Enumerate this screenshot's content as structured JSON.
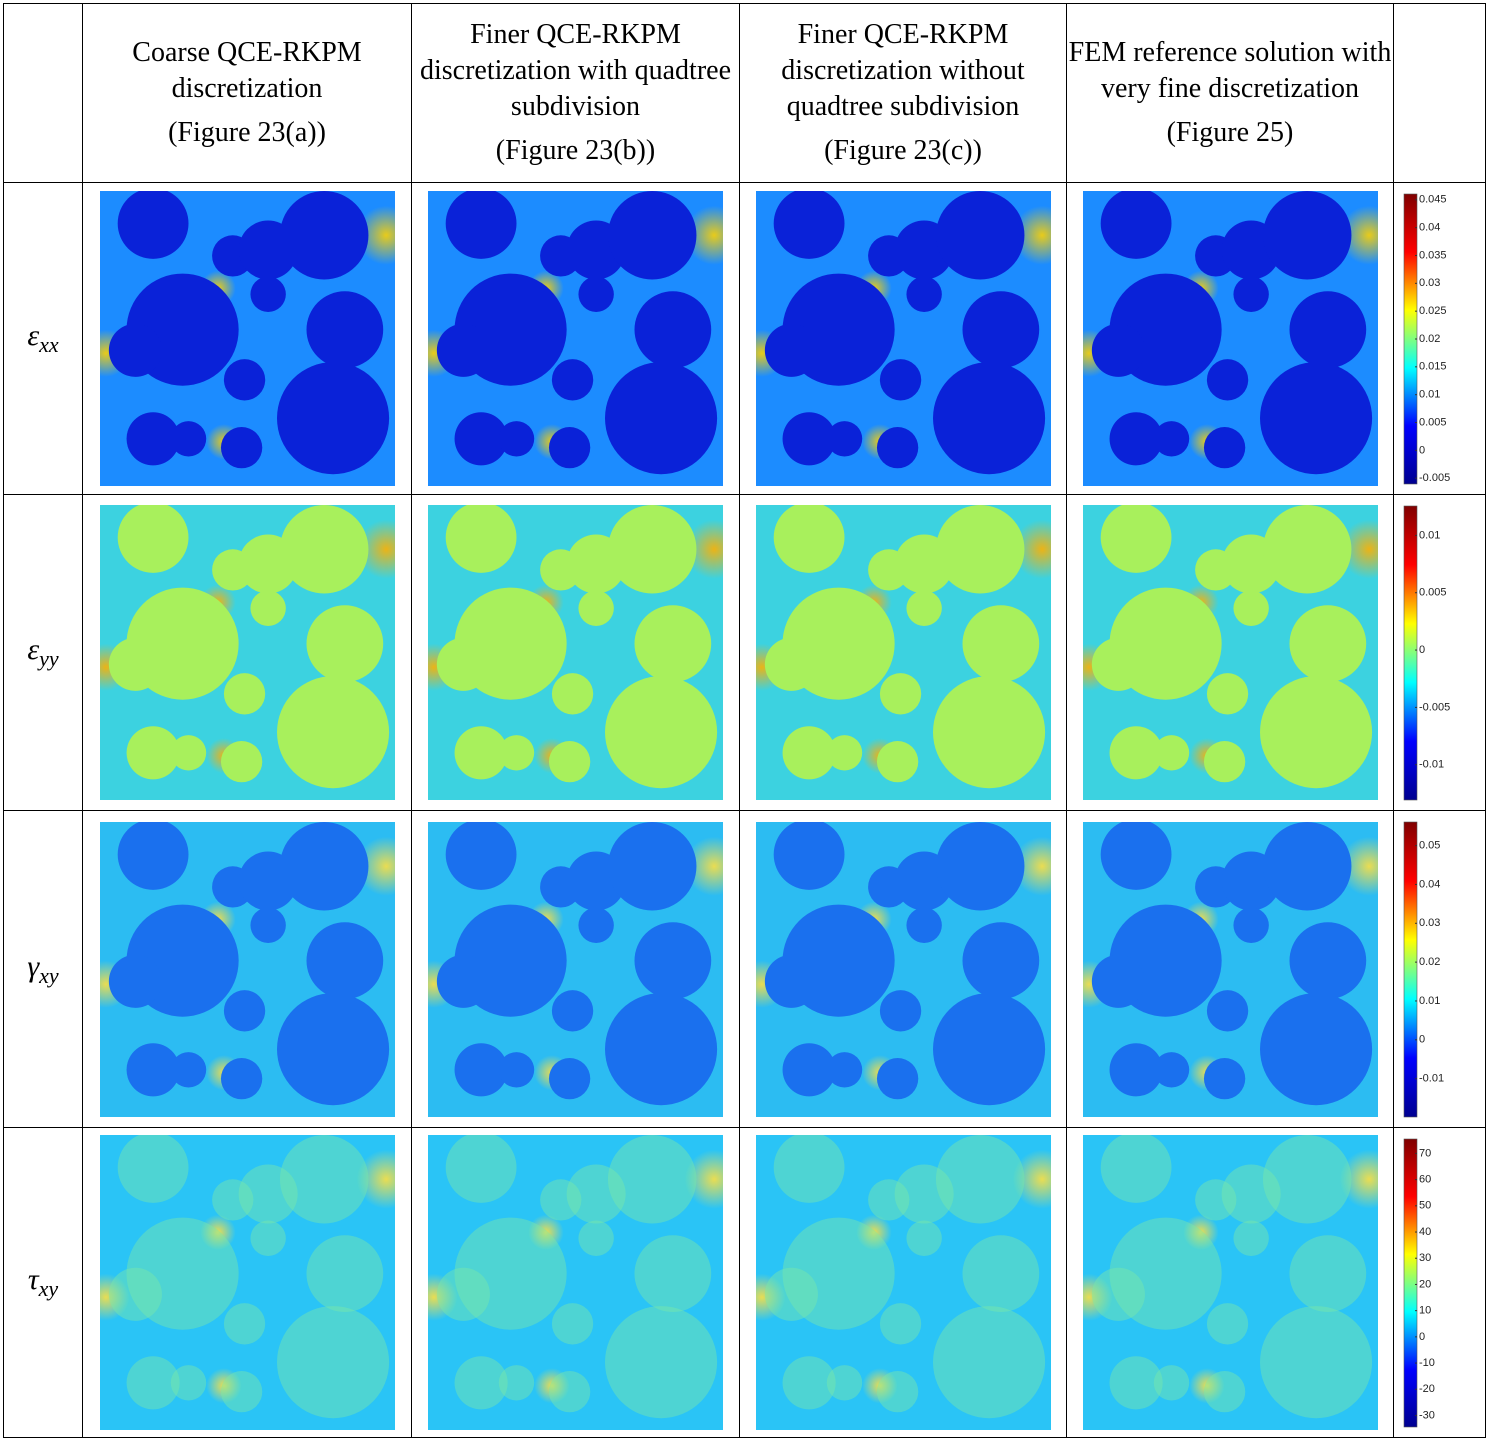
{
  "table": {
    "header": [
      {
        "description": "Coarse QCE-RKPM discretization",
        "reference": "(Figure 23(a))"
      },
      {
        "description": "Finer QCE-RKPM discretization with quadtree subdivision",
        "reference": "(Figure 23(b))"
      },
      {
        "description": "Finer QCE-RKPM discretization without quadtree subdivision",
        "reference": "(Figure 23(c))"
      },
      {
        "description": "FEM reference solution with very fine discretization",
        "reference": "(Figure 25)"
      }
    ],
    "rows": [
      {
        "symbol": "ε",
        "subscript": "xx",
        "colorbar": [
          "0.045",
          "0.04",
          "0.035",
          "0.03",
          "0.025",
          "0.02",
          "0.015",
          "0.01",
          "0.005",
          "0",
          "-0.005"
        ]
      },
      {
        "symbol": "ε",
        "subscript": "yy",
        "colorbar": [
          "0.01",
          "0.005",
          "0",
          "-0.005",
          "-0.01"
        ]
      },
      {
        "symbol": "γ",
        "subscript": "xy",
        "colorbar": [
          "0.05",
          "0.04",
          "0.03",
          "0.02",
          "0.01",
          "0",
          "-0.01"
        ]
      },
      {
        "symbol": "τ",
        "subscript": "xy",
        "colorbar": [
          "70",
          "60",
          "50",
          "40",
          "30",
          "20",
          "10",
          "0",
          "-10",
          "-20",
          "-30"
        ]
      }
    ]
  }
}
